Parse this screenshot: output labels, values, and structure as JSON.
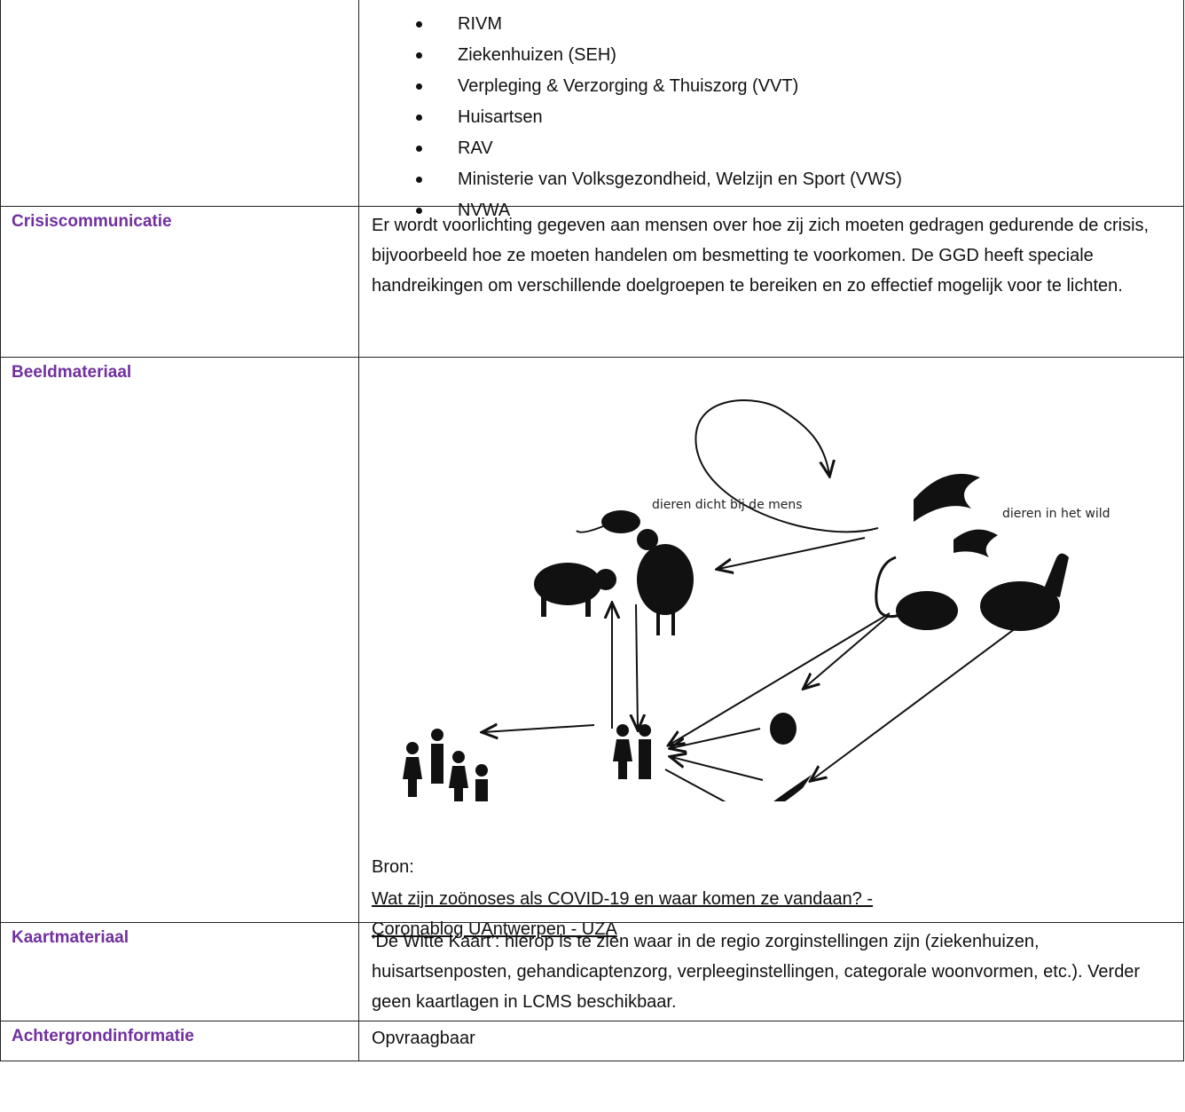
{
  "list": [
    "RIVM",
    "Ziekenhuizen (SEH)",
    "Verpleging & Verzorging & Thuiszorg (VVT)",
    "Huisartsen",
    "RAV",
    "Ministerie van Volksgezondheid, Welzijn en Sport (VWS)",
    "NVWA"
  ],
  "rows": [
    {
      "label": "Crisiscommunicatie",
      "text": "Er wordt voorlichting gegeven aan mensen over hoe zij zich moeten gedragen gedurende de crisis, bijvoorbeeld hoe ze moeten handelen om besmetting te voorkomen. De GGD heeft speciale handreikingen om verschillende doelgroepen te bereiken en zo effectief mogelijk voor te lichten."
    },
    {
      "label": "Beeldmateriaal",
      "figure": {
        "label_near": "dieren dicht bij de mens",
        "label_wild": "dieren in het wild"
      },
      "source_label": "Bron:",
      "source_link": "Wat zijn zoönoses als COVID-19 en waar komen ze vandaan? - Coronablog UAntwerpen - UZA"
    },
    {
      "label": "Kaartmateriaal",
      "text": "‘De Witte Kaart’: hierop is te zien waar in de regio zorginstellingen zijn (ziekenhuizen, huisartsenposten, gehandicaptenzorg, verpleeginstellingen, categorale woonvormen, etc.). Verder geen kaartlagen in LCMS beschikbaar."
    },
    {
      "label": "Achtergrondinformatie",
      "text": "Opvraagbaar"
    }
  ]
}
